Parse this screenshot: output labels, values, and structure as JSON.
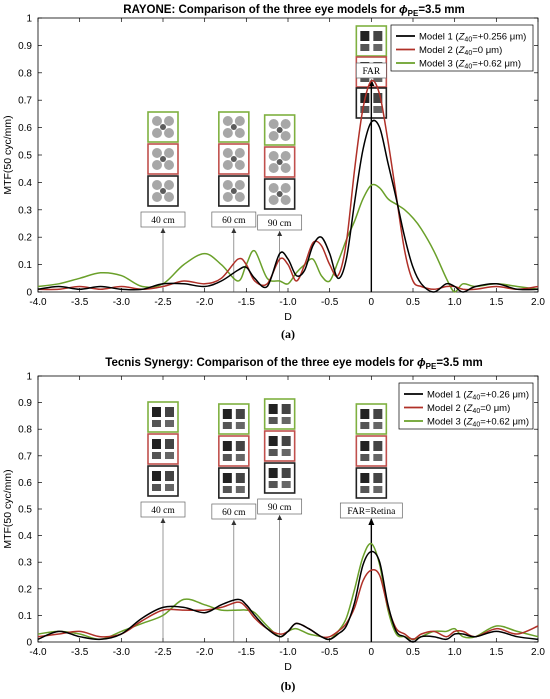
{
  "chart_data": [
    {
      "type": "line",
      "title": "RAYONE: Comparison of the three eye models for ",
      "title_symbol": "ϕ",
      "title_sub": "PE",
      "title_suffix": "=3.5 mm",
      "xlabel": "D",
      "ylabel": "MTF(50 cyc/mm)",
      "xlim": [
        -4.0,
        2.0
      ],
      "ylim": [
        0,
        1
      ],
      "xticks": [
        "-4.0",
        "-3.5",
        "-3.0",
        "-2.5",
        "-2.0",
        "-1.5",
        "-1.0",
        "-0.5",
        "0",
        "0.5",
        "1.0",
        "1.5",
        "2.0"
      ],
      "yticks": [
        "0",
        "0.1",
        "0.2",
        "0.3",
        "0.4",
        "0.5",
        "0.6",
        "0.7",
        "0.8",
        "0.9",
        "1"
      ],
      "grid": false,
      "legend_position": "top-right",
      "caption": "(a)",
      "x": [
        -4.0,
        -3.75,
        -3.5,
        -3.25,
        -3.0,
        -2.75,
        -2.5,
        -2.25,
        -2.0,
        -1.8,
        -1.6,
        -1.5,
        -1.4,
        -1.25,
        -1.1,
        -1.0,
        -0.9,
        -0.8,
        -0.7,
        -0.6,
        -0.5,
        -0.4,
        -0.3,
        -0.2,
        -0.1,
        0.0,
        0.1,
        0.2,
        0.3,
        0.4,
        0.5,
        0.6,
        0.75,
        0.9,
        1.0,
        1.1,
        1.25,
        1.5,
        1.75,
        2.0
      ],
      "series": [
        {
          "name_pre": "Model 1 (",
          "name_var": "Z",
          "name_sub": "40",
          "name_post": "=+0.256 μm)",
          "color": "#000000",
          "values": [
            0.01,
            0.02,
            0.01,
            0.02,
            0.01,
            0.01,
            0.03,
            0.03,
            0.02,
            0.04,
            0.08,
            0.09,
            0.05,
            0.02,
            0.14,
            0.12,
            0.06,
            0.08,
            0.17,
            0.2,
            0.14,
            0.05,
            0.12,
            0.33,
            0.52,
            0.62,
            0.6,
            0.47,
            0.34,
            0.2,
            0.09,
            0.03,
            0.0,
            0.03,
            0.02,
            0.0,
            0.02,
            0.03,
            0.01,
            0.01
          ]
        },
        {
          "name_pre": "Model 2 (",
          "name_var": "Z",
          "name_sub": "40",
          "name_post": "=0 μm)",
          "color": "#b03028",
          "values": [
            0.01,
            0.01,
            0.02,
            0.01,
            0.02,
            0.01,
            0.02,
            0.04,
            0.03,
            0.05,
            0.12,
            0.1,
            0.04,
            0.03,
            0.12,
            0.1,
            0.04,
            0.1,
            0.18,
            0.17,
            0.1,
            0.06,
            0.18,
            0.45,
            0.67,
            0.77,
            0.72,
            0.55,
            0.35,
            0.15,
            0.04,
            0.02,
            0.01,
            0.02,
            0.02,
            0.01,
            0.01,
            0.02,
            0.01,
            0.02
          ]
        },
        {
          "name_pre": "Model 3 (",
          "name_var": "Z",
          "name_sub": "40",
          "name_post": "=+0.62 μm)",
          "color": "#6aa02a",
          "values": [
            0.02,
            0.03,
            0.05,
            0.07,
            0.06,
            0.02,
            0.03,
            0.1,
            0.14,
            0.1,
            0.04,
            0.1,
            0.15,
            0.05,
            0.04,
            0.03,
            0.07,
            0.1,
            0.12,
            0.06,
            0.04,
            0.11,
            0.19,
            0.26,
            0.34,
            0.39,
            0.38,
            0.34,
            0.32,
            0.3,
            0.27,
            0.23,
            0.15,
            0.05,
            0.0,
            0.03,
            0.02,
            0.03,
            0.02,
            0.01
          ]
        }
      ],
      "annotations": [
        {
          "label": "40 cm",
          "x": -2.5
        },
        {
          "label": "60 cm",
          "x": -1.65
        },
        {
          "label": "90 cm",
          "x": -1.1
        },
        {
          "label": "FAR",
          "x": 0.0
        }
      ]
    },
    {
      "type": "line",
      "title": "Tecnis Synergy: Comparison of the three eye models for ",
      "title_symbol": "ϕ",
      "title_sub": "PE",
      "title_suffix": "=3.5 mm",
      "xlabel": "D",
      "ylabel": "MTF(50 cyc/mm)",
      "xlim": [
        -4.0,
        2.0
      ],
      "ylim": [
        0,
        1
      ],
      "xticks": [
        "-4.0",
        "-3.5",
        "-3.0",
        "-2.5",
        "-2.0",
        "-1.5",
        "-1.0",
        "-0.5",
        "0",
        "0.5",
        "1.0",
        "1.5",
        "2.0"
      ],
      "yticks": [
        "0",
        "0.1",
        "0.2",
        "0.3",
        "0.4",
        "0.5",
        "0.6",
        "0.7",
        "0.8",
        "0.9",
        "1"
      ],
      "grid": false,
      "legend_position": "top-right",
      "caption": "(b)",
      "x": [
        -4.0,
        -3.75,
        -3.5,
        -3.25,
        -3.0,
        -2.75,
        -2.5,
        -2.25,
        -2.0,
        -1.8,
        -1.6,
        -1.5,
        -1.4,
        -1.25,
        -1.1,
        -1.0,
        -0.9,
        -0.75,
        -0.6,
        -0.5,
        -0.4,
        -0.3,
        -0.2,
        -0.1,
        0.0,
        0.1,
        0.2,
        0.3,
        0.4,
        0.5,
        0.6,
        0.75,
        0.9,
        1.0,
        1.1,
        1.25,
        1.5,
        1.75,
        2.0
      ],
      "series": [
        {
          "name_pre": "Model 1 (",
          "name_var": "Z",
          "name_sub": "40",
          "name_post": "=+0.26 μm)",
          "color": "#000000",
          "values": [
            0.01,
            0.04,
            0.02,
            0.01,
            0.03,
            0.09,
            0.13,
            0.13,
            0.11,
            0.14,
            0.16,
            0.14,
            0.1,
            0.05,
            0.02,
            0.04,
            0.07,
            0.05,
            0.02,
            0.01,
            0.03,
            0.06,
            0.15,
            0.29,
            0.34,
            0.3,
            0.14,
            0.04,
            0.02,
            0.0,
            0.02,
            0.02,
            0.01,
            0.03,
            0.03,
            0.02,
            0.04,
            0.02,
            0.01
          ]
        },
        {
          "name_pre": "Model 2 (",
          "name_var": "Z",
          "name_sub": "40",
          "name_post": "=0 μm)",
          "color": "#b03028",
          "values": [
            0.02,
            0.03,
            0.04,
            0.02,
            0.03,
            0.08,
            0.12,
            0.12,
            0.12,
            0.13,
            0.15,
            0.13,
            0.09,
            0.05,
            0.03,
            0.04,
            0.07,
            0.05,
            0.02,
            0.02,
            0.04,
            0.07,
            0.13,
            0.23,
            0.27,
            0.25,
            0.13,
            0.05,
            0.03,
            0.01,
            0.03,
            0.04,
            0.02,
            0.04,
            0.04,
            0.02,
            0.05,
            0.03,
            0.06
          ]
        },
        {
          "name_pre": "Model 3 (",
          "name_var": "Z",
          "name_sub": "40",
          "name_post": "=+0.62 μm)",
          "color": "#6aa02a",
          "values": [
            0.03,
            0.04,
            0.03,
            0.01,
            0.04,
            0.07,
            0.1,
            0.16,
            0.14,
            0.12,
            0.12,
            0.12,
            0.11,
            0.06,
            0.02,
            0.04,
            0.05,
            0.03,
            0.02,
            0.01,
            0.04,
            0.09,
            0.2,
            0.32,
            0.37,
            0.29,
            0.12,
            0.03,
            0.02,
            0.01,
            0.02,
            0.04,
            0.04,
            0.05,
            0.02,
            0.02,
            0.06,
            0.04,
            0.02
          ]
        }
      ],
      "annotations": [
        {
          "label": "40 cm",
          "x": -2.5
        },
        {
          "label": "60 cm",
          "x": -1.65
        },
        {
          "label": "90 cm",
          "x": -1.1
        },
        {
          "label": "FAR=Retina",
          "x": 0.0
        }
      ]
    }
  ]
}
